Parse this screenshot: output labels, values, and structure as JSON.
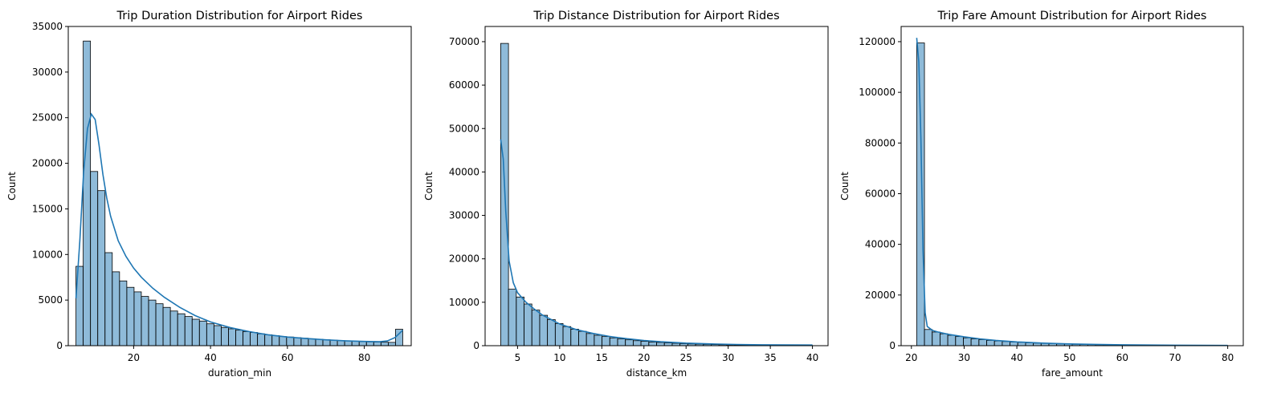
{
  "chart_data": [
    {
      "type": "histogram",
      "title": "Trip Duration Distribution for Airport Rides",
      "xlabel": "duration_min",
      "ylabel": "Count",
      "xlim": [
        3,
        92.2
      ],
      "ylim": [
        0,
        35000
      ],
      "xticks": [
        20,
        40,
        60,
        80
      ],
      "yticks": [
        0,
        5000,
        10000,
        15000,
        20000,
        25000,
        30000,
        35000
      ],
      "bin_range": [
        5,
        90
      ],
      "values": [
        8700,
        33400,
        19100,
        17000,
        10200,
        8100,
        7100,
        6400,
        5900,
        5400,
        5000,
        4600,
        4200,
        3800,
        3500,
        3200,
        2900,
        2700,
        2400,
        2200,
        2000,
        1850,
        1700,
        1550,
        1450,
        1300,
        1200,
        1100,
        1000,
        950,
        880,
        820,
        760,
        700,
        650,
        600,
        560,
        520,
        480,
        450,
        420,
        400,
        380,
        360,
        1800
      ],
      "kde": {
        "x": [
          5,
          6,
          7,
          8,
          9,
          10,
          11,
          12,
          13,
          14,
          16,
          18,
          20,
          22,
          25,
          28,
          32,
          36,
          40,
          45,
          50,
          55,
          60,
          65,
          70,
          75,
          80,
          84,
          86,
          88,
          90
        ],
        "y": [
          5200,
          11500,
          19000,
          23800,
          25400,
          24800,
          22000,
          18800,
          16200,
          14200,
          11500,
          9800,
          8500,
          7500,
          6300,
          5300,
          4200,
          3300,
          2600,
          2000,
          1550,
          1200,
          950,
          780,
          640,
          540,
          470,
          430,
          520,
          900,
          1700
        ]
      }
    },
    {
      "type": "histogram",
      "title": "Trip Distance Distribution for Airport Rides",
      "xlabel": "distance_km",
      "ylabel": "Count",
      "xlim": [
        1.15,
        41.85
      ],
      "ylim": [
        0,
        73500
      ],
      "xticks": [
        5,
        10,
        15,
        20,
        25,
        30,
        35,
        40
      ],
      "yticks": [
        0,
        10000,
        20000,
        30000,
        40000,
        50000,
        60000,
        70000
      ],
      "bin_range": [
        3,
        40
      ],
      "values": [
        69600,
        13000,
        11200,
        9600,
        8200,
        7000,
        6000,
        5100,
        4400,
        3800,
        3300,
        2800,
        2400,
        2100,
        1800,
        1550,
        1350,
        1150,
        1000,
        850,
        740,
        640,
        550,
        470,
        400,
        350,
        300,
        260,
        220,
        190,
        160,
        140,
        120,
        100,
        90,
        80,
        70,
        60,
        55,
        50
      ],
      "kde": {
        "x": [
          3,
          3.3,
          3.6,
          4,
          4.5,
          5,
          6,
          7,
          8,
          9,
          10,
          12,
          14,
          16,
          18,
          20,
          22,
          25,
          28,
          31,
          34,
          37,
          40
        ],
        "y": [
          47500,
          43000,
          31000,
          19500,
          14500,
          12200,
          10000,
          8400,
          7000,
          6000,
          5000,
          3700,
          2800,
          2100,
          1600,
          1200,
          900,
          600,
          400,
          280,
          200,
          160,
          140
        ]
      }
    },
    {
      "type": "histogram",
      "title": "Trip Fare Amount Distribution for Airport Rides",
      "xlabel": "fare_amount",
      "ylabel": "Count",
      "xlim": [
        18.05,
        82.95
      ],
      "ylim": [
        0,
        126000
      ],
      "xticks": [
        20,
        30,
        40,
        50,
        60,
        70,
        80
      ],
      "yticks": [
        0,
        20000,
        40000,
        60000,
        80000,
        100000,
        120000
      ],
      "bin_range": [
        21,
        80
      ],
      "values": [
        119500,
        6400,
        5400,
        4700,
        4100,
        3600,
        3100,
        2700,
        2400,
        2100,
        1850,
        1650,
        1450,
        1300,
        1150,
        1000,
        900,
        800,
        700,
        620,
        550,
        490,
        430,
        380,
        340,
        300,
        270,
        240,
        210,
        190,
        170,
        150,
        130,
        120,
        110,
        100,
        90,
        80,
        75,
        70
      ],
      "kde": {
        "x": [
          21,
          21.4,
          21.8,
          22.2,
          22.6,
          23,
          24,
          25,
          27,
          30,
          33,
          36,
          40,
          45,
          50,
          55,
          60,
          65,
          70,
          75,
          80
        ],
        "y": [
          121500,
          112000,
          82000,
          38000,
          13000,
          7600,
          6000,
          5400,
          4500,
          3500,
          2700,
          2100,
          1500,
          1000,
          700,
          500,
          350,
          250,
          180,
          130,
          100
        ]
      }
    }
  ]
}
